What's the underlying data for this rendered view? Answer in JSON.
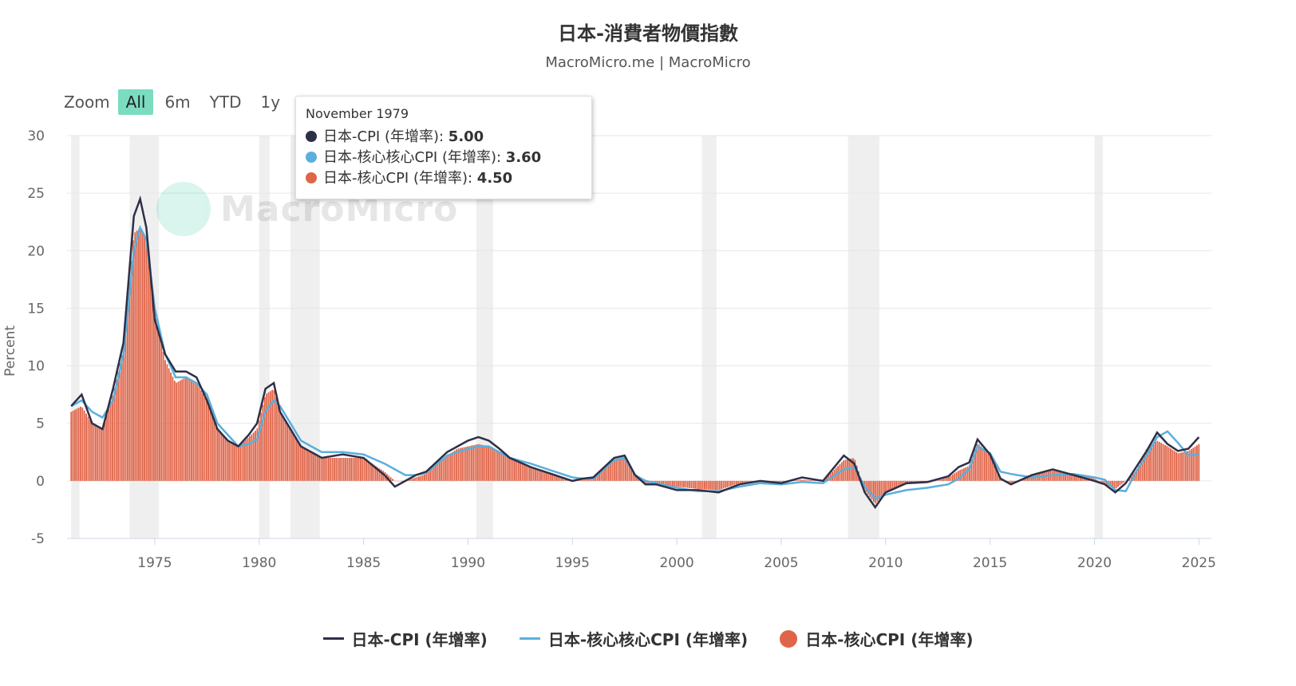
{
  "title": "日本-消費者物價指數",
  "subtitle": "MacroMicro.me | MacroMicro",
  "watermark": "MacroMicro",
  "zoom": {
    "label": "Zoom",
    "buttons": [
      "All",
      "6m",
      "YTD",
      "1y"
    ],
    "active": "All"
  },
  "tooltip": {
    "date": "November 1979",
    "rows": [
      {
        "label": "日本-CPI (年增率)",
        "value": "5.00",
        "color": "#2d3047"
      },
      {
        "label": "日本-核心核心CPI (年增率)",
        "value": "3.60",
        "color": "#5aafdc"
      },
      {
        "label": "日本-核心CPI (年增率)",
        "value": "4.50",
        "color": "#e06448"
      }
    ]
  },
  "legend": [
    {
      "label": "日本-CPI (年增率)",
      "type": "line",
      "color": "#2d3047"
    },
    {
      "label": "日本-核心核心CPI (年增率)",
      "type": "line",
      "color": "#5aafdc"
    },
    {
      "label": "日本-核心CPI (年增率)",
      "type": "column",
      "color": "#e06448"
    }
  ],
  "chart_data": {
    "type": "line",
    "ylabel": "Percent",
    "ylim": [
      -5,
      30
    ],
    "yticks": [
      30,
      25,
      20,
      15,
      10,
      5,
      0,
      -5
    ],
    "xlim": [
      1970.8,
      2025.6
    ],
    "xticks": [
      1975,
      1980,
      1985,
      1990,
      1995,
      2000,
      2005,
      2010,
      2015,
      2020,
      2025
    ],
    "recessions": [
      [
        1971.0,
        1971.4
      ],
      [
        1973.8,
        1975.2
      ],
      [
        1980.0,
        1980.5
      ],
      [
        1981.5,
        1982.9
      ],
      [
        1990.4,
        1991.2
      ],
      [
        2001.2,
        2001.9
      ],
      [
        2008.2,
        2009.7
      ],
      [
        2020.0,
        2020.4
      ]
    ],
    "series": [
      {
        "name": "日本-CPI (年增率)",
        "type": "line",
        "color": "#2d3047",
        "x": [
          1971.0,
          1971.5,
          1972.0,
          1972.5,
          1973.0,
          1973.5,
          1974.0,
          1974.3,
          1974.6,
          1975.0,
          1975.5,
          1976.0,
          1976.5,
          1977.0,
          1977.5,
          1978.0,
          1978.5,
          1979.0,
          1979.5,
          1979.9,
          1980.3,
          1980.7,
          1981.0,
          1981.5,
          1982.0,
          1982.5,
          1983.0,
          1984.0,
          1985.0,
          1986.0,
          1986.5,
          1987.0,
          1987.5,
          1988.0,
          1989.0,
          1989.5,
          1990.0,
          1990.5,
          1991.0,
          1991.5,
          1992.0,
          1993.0,
          1994.0,
          1995.0,
          1995.5,
          1996.0,
          1997.0,
          1997.5,
          1998.0,
          1998.5,
          1999.0,
          2000.0,
          2001.0,
          2002.0,
          2003.0,
          2004.0,
          2005.0,
          2006.0,
          2007.0,
          2008.0,
          2008.5,
          2009.0,
          2009.5,
          2010.0,
          2011.0,
          2012.0,
          2013.0,
          2013.5,
          2014.0,
          2014.4,
          2015.0,
          2015.5,
          2016.0,
          2017.0,
          2018.0,
          2019.0,
          2020.0,
          2020.5,
          2021.0,
          2021.5,
          2022.0,
          2022.5,
          2023.0,
          2023.5,
          2024.0,
          2024.5,
          2025.0
        ],
        "y": [
          6.5,
          7.5,
          5.0,
          4.5,
          8.0,
          12.0,
          23.0,
          24.5,
          22.0,
          14.0,
          11.0,
          9.5,
          9.5,
          9.0,
          7.0,
          4.5,
          3.5,
          3.0,
          4.0,
          5.0,
          8.0,
          8.5,
          6.0,
          4.5,
          3.0,
          2.5,
          2.0,
          2.3,
          2.0,
          0.5,
          -0.5,
          0.0,
          0.5,
          0.8,
          2.5,
          3.0,
          3.5,
          3.8,
          3.5,
          2.8,
          2.0,
          1.2,
          0.6,
          0.0,
          0.2,
          0.3,
          2.0,
          2.2,
          0.5,
          -0.3,
          -0.3,
          -0.8,
          -0.8,
          -1.0,
          -0.3,
          0.0,
          -0.2,
          0.3,
          0.0,
          2.2,
          1.5,
          -1.0,
          -2.3,
          -1.0,
          -0.2,
          -0.1,
          0.4,
          1.2,
          1.6,
          3.6,
          2.3,
          0.2,
          -0.3,
          0.5,
          1.0,
          0.5,
          0.0,
          -0.3,
          -1.0,
          -0.2,
          1.2,
          2.6,
          4.2,
          3.2,
          2.6,
          2.8,
          3.8
        ]
      },
      {
        "name": "日本-核心核心CPI (年增率)",
        "type": "line",
        "color": "#5aafdc",
        "x": [
          1971.0,
          1971.5,
          1972.0,
          1972.5,
          1973.0,
          1973.5,
          1974.0,
          1974.3,
          1974.6,
          1975.0,
          1975.5,
          1976.0,
          1976.5,
          1977.0,
          1977.5,
          1978.0,
          1978.5,
          1979.0,
          1979.5,
          1979.9,
          1980.3,
          1980.7,
          1981.0,
          1981.5,
          1982.0,
          1982.5,
          1983.0,
          1984.0,
          1985.0,
          1986.0,
          1986.5,
          1987.0,
          1987.5,
          1988.0,
          1989.0,
          1989.5,
          1990.0,
          1990.5,
          1991.0,
          1991.5,
          1992.0,
          1993.0,
          1994.0,
          1995.0,
          1995.5,
          1996.0,
          1997.0,
          1997.5,
          1998.0,
          1998.5,
          1999.0,
          2000.0,
          2001.0,
          2002.0,
          2003.0,
          2004.0,
          2005.0,
          2006.0,
          2007.0,
          2008.0,
          2008.5,
          2009.0,
          2009.5,
          2010.0,
          2011.0,
          2012.0,
          2013.0,
          2013.5,
          2014.0,
          2014.4,
          2015.0,
          2015.5,
          2016.0,
          2017.0,
          2018.0,
          2019.0,
          2020.0,
          2020.5,
          2021.0,
          2021.5,
          2022.0,
          2022.5,
          2023.0,
          2023.5,
          2024.0,
          2024.5,
          2025.0
        ],
        "y": [
          6.5,
          7.0,
          6.0,
          5.5,
          7.0,
          11.0,
          20.0,
          22.0,
          21.0,
          15.0,
          11.0,
          9.0,
          9.0,
          8.5,
          7.5,
          5.0,
          4.0,
          3.0,
          3.2,
          3.6,
          6.0,
          7.0,
          6.5,
          5.0,
          3.5,
          3.0,
          2.5,
          2.5,
          2.3,
          1.5,
          1.0,
          0.5,
          0.5,
          0.7,
          2.2,
          2.5,
          2.8,
          3.0,
          3.0,
          2.5,
          2.0,
          1.5,
          0.9,
          0.3,
          0.2,
          0.2,
          1.8,
          2.0,
          0.5,
          0.0,
          -0.2,
          -0.6,
          -0.9,
          -0.9,
          -0.5,
          -0.2,
          -0.3,
          -0.1,
          -0.2,
          1.0,
          1.2,
          -0.5,
          -1.5,
          -1.2,
          -0.8,
          -0.6,
          -0.3,
          0.2,
          1.0,
          3.0,
          2.4,
          0.8,
          0.6,
          0.3,
          0.5,
          0.6,
          0.3,
          0.1,
          -0.8,
          -0.9,
          0.8,
          2.2,
          3.8,
          4.3,
          3.3,
          2.2,
          2.3
        ]
      },
      {
        "name": "日本-核心CPI (年增率)",
        "type": "column",
        "color": "#e06448",
        "x": [
          1971.0,
          1971.5,
          1972.0,
          1972.5,
          1973.0,
          1973.5,
          1974.0,
          1974.3,
          1974.6,
          1975.0,
          1975.5,
          1976.0,
          1976.5,
          1977.0,
          1977.5,
          1978.0,
          1978.5,
          1979.0,
          1979.5,
          1979.9,
          1980.3,
          1980.7,
          1981.0,
          1981.5,
          1982.0,
          1982.5,
          1983.0,
          1984.0,
          1985.0,
          1986.0,
          1986.5,
          1987.0,
          1987.5,
          1988.0,
          1989.0,
          1989.5,
          1990.0,
          1990.5,
          1991.0,
          1991.5,
          1992.0,
          1993.0,
          1994.0,
          1995.0,
          1995.5,
          1996.0,
          1997.0,
          1997.5,
          1998.0,
          1998.5,
          1999.0,
          2000.0,
          2001.0,
          2002.0,
          2003.0,
          2004.0,
          2005.0,
          2006.0,
          2007.0,
          2008.0,
          2008.5,
          2009.0,
          2009.5,
          2010.0,
          2011.0,
          2012.0,
          2013.0,
          2013.5,
          2014.0,
          2014.4,
          2015.0,
          2015.5,
          2016.0,
          2017.0,
          2018.0,
          2019.0,
          2020.0,
          2020.5,
          2021.0,
          2021.5,
          2022.0,
          2022.5,
          2023.0,
          2023.5,
          2024.0,
          2024.5,
          2025.0
        ],
        "y": [
          6.0,
          6.5,
          5.0,
          4.5,
          7.5,
          11.5,
          21.5,
          22.0,
          21.0,
          14.5,
          10.5,
          8.5,
          9.0,
          8.5,
          7.0,
          4.5,
          3.5,
          3.0,
          3.8,
          4.5,
          7.5,
          8.0,
          6.0,
          4.5,
          3.0,
          2.5,
          2.0,
          2.0,
          2.0,
          0.8,
          0.0,
          0.0,
          0.3,
          0.6,
          2.2,
          2.8,
          3.0,
          3.2,
          3.0,
          2.5,
          2.0,
          1.2,
          0.7,
          0.0,
          0.1,
          0.2,
          1.8,
          2.0,
          0.4,
          -0.2,
          -0.3,
          -0.5,
          -0.7,
          -0.8,
          -0.2,
          -0.1,
          -0.1,
          0.1,
          0.0,
          1.8,
          2.0,
          -0.8,
          -2.0,
          -1.0,
          -0.3,
          -0.2,
          0.3,
          0.9,
          1.3,
          3.3,
          2.2,
          0.3,
          -0.3,
          0.5,
          0.9,
          0.6,
          0.2,
          -0.3,
          -0.7,
          0.0,
          0.9,
          2.8,
          3.5,
          3.0,
          2.4,
          2.6,
          3.2
        ]
      }
    ]
  }
}
